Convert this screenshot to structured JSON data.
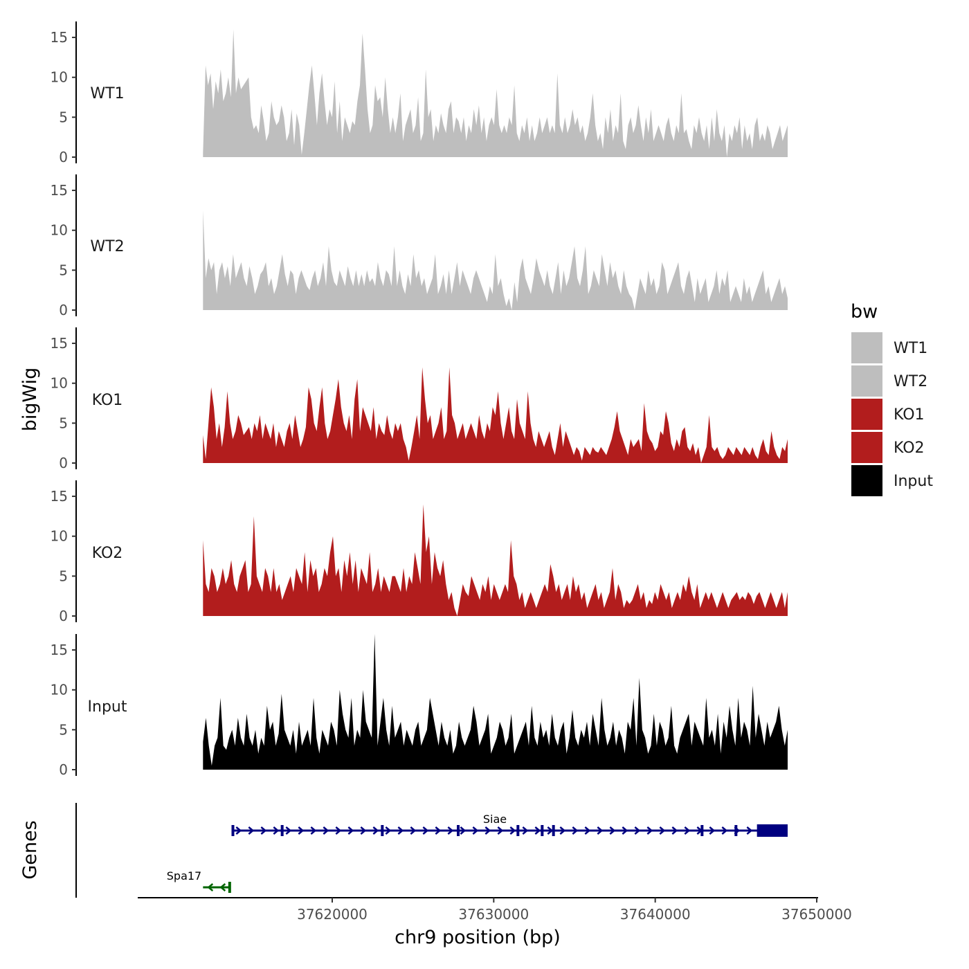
{
  "chart_data": {
    "type": "area",
    "y_axis_title": "bigWig",
    "x_axis_title": "chr9 position (bp)",
    "xlim": [
      37608000,
      37650000
    ],
    "x_ticks": [
      37620000,
      37630000,
      37640000,
      37650000
    ],
    "x_tick_labels": [
      "37620000",
      "37630000",
      "37640000",
      "37650000"
    ],
    "ylim": [
      0,
      17
    ],
    "y_ticks": [
      0,
      5,
      10,
      15
    ],
    "y_tick_labels": [
      "0",
      "5",
      "10",
      "15"
    ],
    "x_start": 37612000,
    "x_end": 37648200,
    "series": [
      {
        "name": "WT1",
        "color": "#bebebe",
        "values": [
          0.5,
          11.5,
          9,
          10.5,
          6,
          9.5,
          8,
          11,
          7,
          8,
          10,
          7.5,
          16,
          8,
          10,
          8.5,
          9,
          9.5,
          10,
          5,
          3.5,
          4,
          3,
          6.5,
          4.5,
          2,
          3,
          7,
          5,
          4,
          4.5,
          6.5,
          5,
          2,
          3,
          6,
          1.5,
          5.5,
          4,
          0.3,
          3,
          6,
          9,
          11.5,
          8,
          4,
          8,
          10.5,
          7,
          4,
          6,
          5,
          9.5,
          3,
          7,
          2,
          5,
          4,
          3,
          4.5,
          4,
          7,
          9,
          15.5,
          11,
          6,
          3,
          4,
          9,
          7,
          7.5,
          5,
          10,
          6,
          3,
          5,
          3,
          5,
          8,
          2,
          4,
          5,
          6,
          3,
          4,
          7.5,
          2,
          3,
          11,
          5,
          6,
          2,
          4,
          3,
          5.5,
          4,
          3,
          6,
          7,
          3,
          5,
          4.5,
          3,
          5,
          2,
          4,
          3,
          6,
          4,
          6.5,
          3,
          5,
          2,
          4,
          5,
          4,
          8.5,
          4,
          3,
          4,
          3,
          5,
          4,
          9,
          3,
          2,
          4,
          3,
          5,
          2,
          4,
          2,
          3,
          5,
          3,
          4,
          5,
          3,
          4,
          3,
          10.5,
          4,
          3,
          5,
          3,
          4,
          6,
          4,
          5,
          3,
          4,
          2,
          3,
          5,
          8,
          4,
          2,
          3,
          1,
          5,
          3,
          6,
          2,
          4,
          3,
          8,
          2,
          1,
          4,
          5,
          3,
          4,
          6.5,
          4,
          2,
          5,
          3,
          6,
          2,
          3,
          4,
          3,
          2,
          4,
          5,
          3,
          2,
          4,
          3,
          8,
          3,
          3.5,
          2,
          1,
          4,
          3,
          5,
          3,
          2,
          4,
          1,
          5,
          2,
          6,
          3,
          2,
          4,
          0,
          3,
          2,
          4,
          3,
          5,
          1,
          4,
          2,
          3,
          1,
          4,
          5,
          2,
          3,
          2,
          4,
          3,
          1,
          2,
          3,
          4,
          2,
          3,
          4
        ]
      },
      {
        "name": "WT2",
        "color": "#bebebe",
        "values": [
          12.5,
          4,
          6.5,
          5,
          6,
          2,
          5,
          6,
          4,
          5.5,
          3,
          7,
          4,
          5,
          6,
          4,
          3,
          5.5,
          4,
          2,
          3,
          4.5,
          5,
          6,
          3,
          4,
          2,
          3,
          5,
          7,
          4.5,
          3,
          5,
          4.5,
          2,
          4,
          5,
          4,
          3,
          2.5,
          4,
          5,
          3,
          4,
          6,
          3,
          8,
          5,
          3.5,
          3,
          5,
          4,
          3,
          5.5,
          4,
          3,
          5,
          3,
          4.5,
          3,
          5,
          3.5,
          4,
          3,
          6,
          4,
          3,
          5,
          4.5,
          3,
          8,
          3,
          5,
          3,
          2,
          4.5,
          3,
          7,
          4,
          5,
          3,
          4,
          2,
          3,
          4,
          7,
          2,
          3,
          4.5,
          2,
          5,
          2,
          4,
          6,
          3,
          5,
          4,
          3,
          2,
          4,
          5,
          4,
          3,
          2,
          1,
          3,
          2,
          7,
          3,
          4,
          2,
          0.5,
          1.5,
          0,
          3.5,
          1,
          5,
          6.5,
          4,
          3,
          2,
          4,
          6.5,
          5,
          4,
          3,
          5,
          3,
          2,
          4,
          6,
          2,
          5,
          3,
          4,
          6,
          8,
          4,
          3,
          5,
          8,
          2,
          3,
          5,
          4,
          3,
          7,
          5,
          3,
          6,
          4,
          5,
          3,
          2,
          5,
          3,
          2,
          1.5,
          0,
          2,
          4,
          3,
          2,
          5,
          3,
          4,
          2,
          3,
          6,
          5,
          2,
          3,
          4,
          5,
          6,
          3,
          2,
          4,
          5,
          3,
          1,
          4,
          2,
          3,
          4,
          1,
          2,
          3,
          5,
          2,
          4,
          3,
          5,
          1,
          2,
          3,
          2,
          1,
          4,
          2,
          3,
          1,
          2,
          3,
          4,
          5,
          2,
          3,
          1,
          2,
          3,
          4,
          2,
          3,
          1.5
        ]
      },
      {
        "name": "KO1",
        "color": "#b21d1d",
        "values": [
          3.5,
          0.5,
          5,
          9.5,
          7,
          3,
          5,
          2,
          4.5,
          9,
          5,
          3,
          4,
          6,
          5,
          3.5,
          4,
          4.5,
          3,
          5,
          4,
          6,
          3,
          5,
          4,
          3,
          5,
          2,
          4,
          3,
          2,
          4,
          5,
          3,
          6,
          4,
          2,
          3,
          4.5,
          9.5,
          8,
          5,
          4,
          7,
          9.5,
          5,
          3,
          4,
          6,
          8,
          10.5,
          7,
          5,
          4,
          6,
          3,
          8,
          10.5,
          4,
          7,
          6,
          5,
          4,
          7,
          3,
          5,
          4,
          3.5,
          6,
          4,
          3,
          5,
          4,
          5,
          3,
          2,
          0.3,
          2,
          4,
          6,
          3,
          12,
          8,
          5,
          6,
          3,
          4,
          5,
          7,
          3,
          4,
          12,
          6,
          5,
          3,
          4,
          5,
          3,
          4,
          5,
          4,
          3,
          6,
          4,
          3,
          5,
          4,
          7,
          6,
          9,
          5,
          3,
          5,
          7,
          4,
          3,
          8,
          5,
          4,
          3,
          9,
          5,
          3,
          2,
          4,
          3,
          2,
          3,
          4,
          2,
          1,
          3,
          5,
          2,
          4,
          3,
          2,
          1,
          2,
          1.5,
          0.3,
          2,
          1.5,
          1,
          2,
          1.5,
          1.3,
          2,
          1.5,
          1,
          2,
          3,
          4.5,
          6.5,
          4,
          3,
          2,
          1,
          3,
          2,
          2.5,
          3,
          1.5,
          7.5,
          4,
          3,
          2.5,
          1.5,
          2,
          4,
          3.5,
          6.5,
          5,
          2.5,
          1.5,
          3,
          2,
          4,
          4.5,
          2,
          1.5,
          2.5,
          1,
          2,
          0,
          1,
          2,
          6,
          2,
          1.5,
          2,
          1,
          0.5,
          1,
          2,
          1.5,
          1,
          2,
          1.5,
          1,
          2,
          1.5,
          1,
          2,
          1,
          0.5,
          2,
          3,
          1.5,
          1,
          4,
          2,
          1,
          0.5,
          2,
          1.5,
          3
        ]
      },
      {
        "name": "KO2",
        "color": "#b21d1d",
        "values": [
          9.5,
          4,
          3,
          6,
          5,
          3,
          4,
          6,
          4,
          5,
          7,
          4,
          3,
          5,
          6,
          7,
          3,
          4,
          12.5,
          5,
          4,
          3,
          6,
          5,
          3,
          6,
          3,
          4,
          2,
          3,
          4,
          5,
          3,
          6,
          5,
          4,
          8,
          3,
          7,
          5,
          6,
          3,
          4,
          6,
          5,
          8,
          10,
          5,
          6,
          3,
          7,
          5,
          8,
          4,
          7,
          3,
          6,
          5,
          4,
          8,
          3,
          4,
          6,
          3,
          5,
          4,
          3,
          5,
          5,
          4,
          3,
          6,
          3,
          5,
          4,
          8,
          6,
          4,
          14,
          8,
          10,
          4,
          8,
          6,
          5,
          7,
          4,
          2,
          3,
          1,
          0,
          2,
          4,
          3,
          2.5,
          5,
          4,
          3,
          2,
          4,
          3,
          5,
          2,
          4,
          3,
          2,
          3,
          4,
          3,
          9.5,
          5,
          4,
          2,
          3,
          1,
          2,
          3,
          2,
          1,
          2,
          3,
          4,
          3,
          6.5,
          5,
          3,
          4,
          2,
          3,
          4,
          2,
          5,
          3,
          4,
          2,
          3,
          1,
          2,
          3,
          4,
          2,
          3,
          1,
          2,
          3,
          6,
          2,
          4,
          3,
          1,
          2,
          1.5,
          2,
          3,
          4,
          2,
          3,
          1,
          2,
          1.5,
          3,
          2,
          4,
          3,
          2,
          3,
          1,
          2,
          3,
          2,
          4,
          3,
          5,
          3,
          2,
          4,
          1,
          2,
          3,
          2,
          3,
          2,
          1,
          2,
          3,
          2,
          1,
          2,
          2.5,
          3,
          2,
          2.5,
          2,
          3,
          2.5,
          1.5,
          2.5,
          3,
          2,
          1,
          2,
          3,
          2,
          1,
          2,
          3,
          1,
          3
        ]
      },
      {
        "name": "Input",
        "color": "#000000",
        "values": [
          3.5,
          6.5,
          3,
          0.5,
          3,
          4,
          9,
          3,
          2.5,
          4,
          5,
          3,
          6.5,
          4,
          3,
          7,
          4,
          3,
          5,
          2,
          4,
          3,
          8,
          5,
          6,
          3,
          4.5,
          9.5,
          5,
          4,
          3,
          5,
          2,
          6,
          3,
          4,
          5,
          3,
          9,
          4,
          2,
          5,
          4,
          3,
          6,
          5,
          3,
          10,
          7,
          5,
          4,
          9,
          3,
          5,
          4,
          10,
          6,
          5,
          4,
          17,
          3,
          6,
          9,
          5,
          3,
          8,
          4,
          5,
          6,
          3,
          5,
          4,
          3,
          5,
          6,
          3,
          4,
          5,
          9,
          7,
          5,
          3,
          6,
          4,
          3,
          5,
          2,
          3,
          6,
          4,
          3,
          4,
          5,
          8,
          6,
          3,
          4,
          5,
          7,
          2,
          3,
          4,
          6,
          5,
          3,
          4,
          7,
          2,
          3,
          4,
          5,
          6,
          3,
          8,
          4,
          3,
          6,
          4,
          5,
          3,
          7,
          4,
          3,
          5,
          6,
          2,
          4,
          7.5,
          4,
          3,
          5,
          4,
          6,
          3,
          7,
          5,
          3,
          9,
          5,
          3,
          4,
          6,
          3,
          5,
          4,
          2,
          6,
          5,
          9,
          3,
          11.5,
          5,
          4,
          2,
          3,
          7,
          3,
          6,
          5,
          3,
          4,
          8,
          3,
          2,
          4,
          5,
          6,
          7,
          3,
          6,
          5,
          4,
          3,
          9,
          4,
          5,
          3,
          7,
          2,
          6,
          4,
          8,
          5,
          3,
          9,
          4,
          6,
          5,
          3,
          10.5,
          4,
          7,
          5,
          3,
          6,
          4,
          5,
          6,
          8,
          5,
          3,
          5
        ]
      }
    ],
    "genes": [
      {
        "name": "Siae",
        "start": 37613800,
        "end": 37648200,
        "strand": "+",
        "color": "#000080",
        "exons": [
          37613850,
          37616900,
          37623100,
          37627800,
          37631500,
          37633000,
          37633700,
          37642900,
          37645000
        ],
        "utr_block": [
          37646300,
          37648200
        ]
      },
      {
        "name": "Spa17",
        "start": 37612000,
        "end": 37613700,
        "strand": "-",
        "color": "#006400",
        "exons": [
          37613650
        ]
      }
    ]
  },
  "legend": {
    "title": "bw",
    "items": [
      {
        "label": "WT1",
        "color": "#bebebe"
      },
      {
        "label": "WT2",
        "color": "#bebebe"
      },
      {
        "label": "KO1",
        "color": "#b21d1d"
      },
      {
        "label": "KO2",
        "color": "#b21d1d"
      },
      {
        "label": "Input",
        "color": "#000000"
      }
    ]
  },
  "genes_panel_title": "Genes"
}
